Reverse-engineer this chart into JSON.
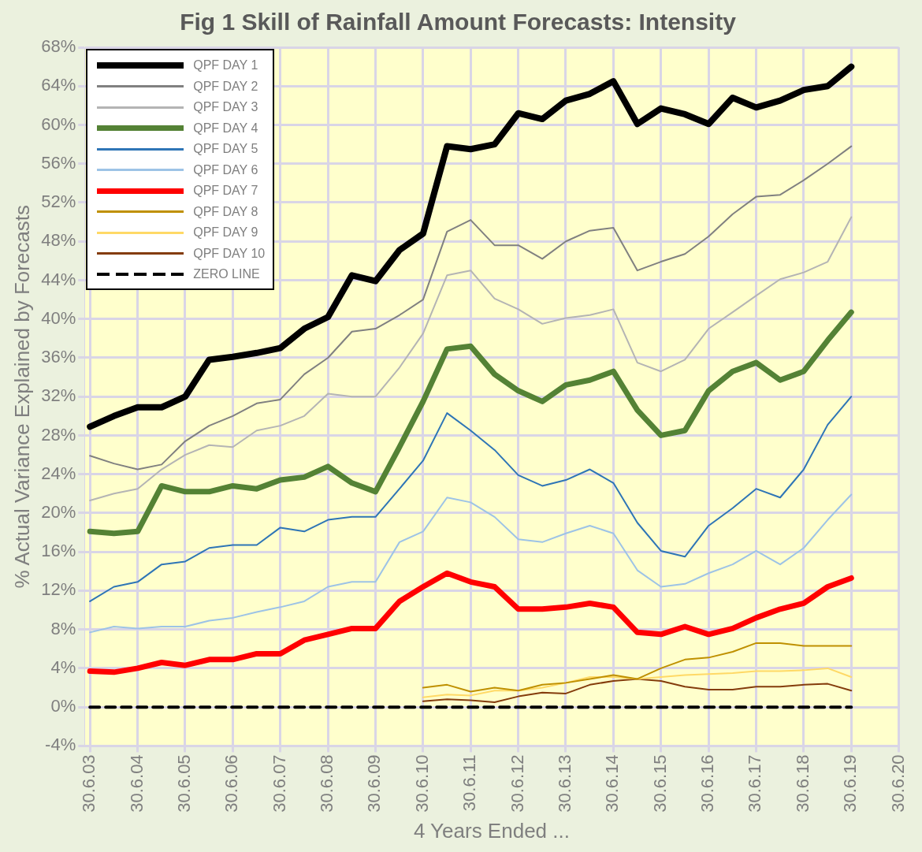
{
  "chart_data": {
    "type": "line",
    "title": "Fig 1 Skill of Rainfall Amount Forecasts: Intensity",
    "xlabel": "4 Years Ended ...",
    "ylabel": "% Actual Variance Explained by Forecasts",
    "x": [
      "2003-07",
      "2004-01",
      "2004-07",
      "2005-01",
      "2005-07",
      "2006-01",
      "2006-07",
      "2007-01",
      "2007-07",
      "2008-01",
      "2008-07",
      "2009-01",
      "2009-07",
      "2010-01",
      "2010-07",
      "2011-01",
      "2011-07",
      "2012-01",
      "2012-07",
      "2013-01",
      "2013-07",
      "2014-01",
      "2014-07",
      "2015-01",
      "2015-07",
      "2016-01",
      "2016-07",
      "2017-01",
      "2017-07",
      "2018-01",
      "2018-07",
      "2019-01",
      "2019-07"
    ],
    "series": [
      {
        "name": "QPF DAY 1",
        "color": "#000000",
        "values": [
          28.9,
          30,
          30.9,
          30.9,
          32,
          35.8,
          36.1,
          36.5,
          37,
          39,
          40.2,
          44.5,
          43.9,
          47.1,
          48.8,
          57.8,
          57.5,
          58,
          61.2,
          60.6,
          62.5,
          63.2,
          64.5,
          60.1,
          61.7,
          61.1,
          60.1,
          62.8,
          61.8,
          62.5,
          63.6,
          64,
          66
        ]
      },
      {
        "name": "QPF DAY 2",
        "color": "#808080",
        "values": [
          25.9,
          25.1,
          24.5,
          25,
          27.4,
          29,
          30,
          31.3,
          31.7,
          34.3,
          36,
          38.7,
          39,
          40.4,
          42,
          49,
          50.2,
          47.6,
          47.6,
          46.2,
          48,
          49.1,
          49.4,
          45,
          45.9,
          46.7,
          48.5,
          50.8,
          52.6,
          52.8,
          54.3,
          56,
          57.8
        ]
      },
      {
        "name": "QPF DAY 3",
        "color": "#b4b4b4",
        "values": [
          21.3,
          22,
          22.5,
          24.5,
          26,
          27,
          26.8,
          28.5,
          29,
          30,
          32.3,
          32,
          32,
          35,
          38.5,
          44.5,
          45,
          42.1,
          41,
          39.5,
          40.1,
          40.4,
          41,
          35.5,
          34.6,
          35.8,
          39,
          40.7,
          42.4,
          44.1,
          44.8,
          45.9,
          50.5
        ]
      },
      {
        "name": "QPF DAY 4",
        "color": "#548235",
        "values": [
          18.1,
          17.9,
          18.1,
          22.8,
          22.2,
          22.2,
          22.8,
          22.5,
          23.4,
          23.7,
          24.8,
          23.1,
          22.2,
          26.8,
          31.5,
          36.9,
          37.2,
          34.3,
          32.6,
          31.5,
          33.2,
          33.7,
          34.6,
          30.6,
          28,
          28.5,
          32.6,
          34.6,
          35.5,
          33.7,
          34.6,
          37.8,
          40.7
        ]
      },
      {
        "name": "QPF DAY 5",
        "color": "#2e75b6",
        "values": [
          10.9,
          12.4,
          12.9,
          14.7,
          15,
          16.4,
          16.7,
          16.7,
          18.5,
          18.1,
          19.3,
          19.6,
          19.6,
          22.5,
          25.4,
          30.3,
          28.5,
          26.5,
          23.9,
          22.8,
          23.4,
          24.5,
          23.1,
          19,
          16.1,
          15.5,
          18.7,
          20.5,
          22.5,
          21.6,
          24.5,
          29.1,
          32
        ]
      },
      {
        "name": "QPF DAY 6",
        "color": "#9dc3e6",
        "values": [
          7.7,
          8.3,
          8.1,
          8.3,
          8.3,
          8.9,
          9.2,
          9.8,
          10.3,
          10.9,
          12.4,
          12.9,
          12.9,
          17,
          18.1,
          21.6,
          21.1,
          19.6,
          17.3,
          17,
          17.9,
          18.7,
          17.9,
          14.1,
          12.4,
          12.7,
          13.8,
          14.7,
          16.1,
          14.7,
          16.4,
          19.3,
          21.9
        ]
      },
      {
        "name": "QPF DAY 7",
        "color": "#ff0000",
        "values": [
          3.7,
          3.6,
          4,
          4.6,
          4.3,
          4.9,
          4.9,
          5.5,
          5.5,
          6.9,
          7.5,
          8.1,
          8.1,
          10.9,
          12.4,
          13.8,
          12.9,
          12.4,
          10.1,
          10.1,
          10.3,
          10.7,
          10.3,
          7.7,
          7.5,
          8.3,
          7.5,
          8.1,
          9.2,
          10.1,
          10.7,
          12.4,
          13.3
        ]
      },
      {
        "name": "QPF DAY 8",
        "color": "#bf9000",
        "values": [
          null,
          null,
          null,
          null,
          null,
          null,
          null,
          null,
          null,
          null,
          null,
          null,
          null,
          null,
          2.0,
          2.3,
          1.6,
          2.0,
          1.7,
          2.3,
          2.5,
          2.9,
          3.3,
          2.9,
          4,
          4.9,
          5.1,
          5.7,
          6.6,
          6.6,
          6.3,
          6.3,
          6.3
        ]
      },
      {
        "name": "QPF DAY 9",
        "color": "#ffd966",
        "values": [
          null,
          null,
          null,
          null,
          null,
          null,
          null,
          null,
          null,
          null,
          null,
          null,
          null,
          null,
          1.0,
          1.3,
          1.2,
          1.7,
          1.7,
          2.0,
          2.5,
          3.1,
          3.1,
          2.9,
          3.1,
          3.3,
          3.4,
          3.5,
          3.7,
          3.7,
          3.8,
          4.0,
          3.1
        ]
      },
      {
        "name": "QPF DAY 10",
        "color": "#843c0c",
        "values": [
          null,
          null,
          null,
          null,
          null,
          null,
          null,
          null,
          null,
          null,
          null,
          null,
          null,
          null,
          0.6,
          0.8,
          0.7,
          0.5,
          1.1,
          1.5,
          1.4,
          2.3,
          2.7,
          2.9,
          2.7,
          2.1,
          1.8,
          1.8,
          2.1,
          2.1,
          2.3,
          2.4,
          1.7
        ]
      },
      {
        "name": "ZERO LINE",
        "color": "#000000",
        "line_style": "dashed",
        "values": [
          0,
          0,
          0,
          0,
          0,
          0,
          0,
          0,
          0,
          0,
          0,
          0,
          0,
          0,
          0,
          0,
          0,
          0,
          0,
          0,
          0,
          0,
          0,
          0,
          0,
          0,
          0,
          0,
          0,
          0,
          0,
          0,
          0
        ]
      }
    ],
    "xlim": [
      "2003-05-20",
      "2020-06-30"
    ],
    "xticks": [
      {
        "value": "2003-06-30",
        "label": "30.6.03"
      },
      {
        "value": "2004-06-30",
        "label": "30.6.04"
      },
      {
        "value": "2005-06-30",
        "label": "30.6.05"
      },
      {
        "value": "2006-06-30",
        "label": "30.6.06"
      },
      {
        "value": "2007-06-30",
        "label": "30.6.07"
      },
      {
        "value": "2008-06-30",
        "label": "30.6.08"
      },
      {
        "value": "2009-06-30",
        "label": "30.6.09"
      },
      {
        "value": "2010-06-30",
        "label": "30.6.10"
      },
      {
        "value": "2011-06-30",
        "label": "30.6.11"
      },
      {
        "value": "2012-06-30",
        "label": "30.6.12"
      },
      {
        "value": "2013-06-30",
        "label": "30.6.13"
      },
      {
        "value": "2014-06-30",
        "label": "30.6.14"
      },
      {
        "value": "2015-06-30",
        "label": "30.6.15"
      },
      {
        "value": "2016-06-30",
        "label": "30.6.16"
      },
      {
        "value": "2017-06-30",
        "label": "30.6.17"
      },
      {
        "value": "2018-06-30",
        "label": "30.6.18"
      },
      {
        "value": "2019-06-30",
        "label": "30.6.19"
      },
      {
        "value": "2020-06-30",
        "label": "30.6.20"
      }
    ],
    "ylim": [
      -4,
      68
    ],
    "yticks": [
      {
        "value": -4,
        "label": "-4%"
      },
      {
        "value": 0,
        "label": "0%"
      },
      {
        "value": 4,
        "label": "4%"
      },
      {
        "value": 8,
        "label": "8%"
      },
      {
        "value": 12,
        "label": "12%"
      },
      {
        "value": 16,
        "label": "16%"
      },
      {
        "value": 20,
        "label": "20%"
      },
      {
        "value": 24,
        "label": "24%"
      },
      {
        "value": 28,
        "label": "28%"
      },
      {
        "value": 32,
        "label": "32%"
      },
      {
        "value": 36,
        "label": "36%"
      },
      {
        "value": 40,
        "label": "40%"
      },
      {
        "value": 44,
        "label": "44%"
      },
      {
        "value": 48,
        "label": "48%"
      },
      {
        "value": 52,
        "label": "52%"
      },
      {
        "value": 56,
        "label": "56%"
      },
      {
        "value": 60,
        "label": "60%"
      },
      {
        "value": 64,
        "label": "64%"
      },
      {
        "value": 68,
        "label": "68%"
      }
    ],
    "grid": true,
    "legend": "top left",
    "marker": "none",
    "line_style": "solid"
  }
}
